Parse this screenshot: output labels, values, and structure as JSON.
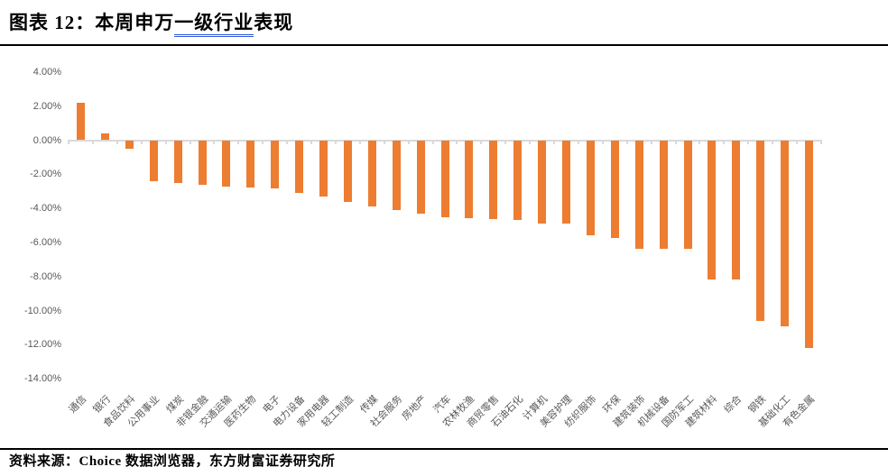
{
  "header": {
    "label_bold": "图表 12：",
    "title_part1": "本周申万",
    "title_underlined": "一级行业",
    "title_part2": "表现"
  },
  "footer": {
    "source": "资料来源：Choice 数据浏览器，东方财富证券研究所"
  },
  "colors": {
    "bar": "#ED7D31",
    "axis_line": "#D9D9D9",
    "axis_text": "#595959",
    "title_underline": "#2E5BDB",
    "rule": "#000000"
  },
  "chart_data": {
    "type": "bar",
    "title": "本周申万一级行业表现",
    "xlabel": "",
    "ylabel": "",
    "unit": "%",
    "grid": false,
    "legend": "none",
    "bar_color": "#ED7D31",
    "ylim": [
      -14,
      4
    ],
    "yticks": [
      4,
      2,
      0,
      -2,
      -4,
      -6,
      -8,
      -10,
      -12,
      -14
    ],
    "ytick_labels": [
      "4.00%",
      "2.00%",
      "0.00%",
      "-2.00%",
      "-4.00%",
      "-6.00%",
      "-8.00%",
      "-10.00%",
      "-12.00%",
      "-14.00%"
    ],
    "categories": [
      "通信",
      "银行",
      "食品饮料",
      "公用事业",
      "煤炭",
      "非银金融",
      "交通运输",
      "医药生物",
      "电子",
      "电力设备",
      "家用电器",
      "轻工制造",
      "传媒",
      "社会服务",
      "房地产",
      "汽车",
      "农林牧渔",
      "商贸零售",
      "石油石化",
      "计算机",
      "美容护理",
      "纺织服饰",
      "环保",
      "建筑装饰",
      "机械设备",
      "国防军工",
      "建筑材料",
      "综合",
      "钢铁",
      "基础化工",
      "有色金属"
    ],
    "values": [
      2.2,
      0.4,
      -0.5,
      -2.4,
      -2.5,
      -2.6,
      -2.7,
      -2.8,
      -2.85,
      -3.1,
      -3.3,
      -3.6,
      -3.9,
      -4.1,
      -4.3,
      -4.5,
      -4.6,
      -4.65,
      -4.7,
      -4.9,
      -4.9,
      -5.6,
      -5.75,
      -6.4,
      -6.4,
      -6.4,
      -8.15,
      -8.2,
      -10.6,
      -10.9,
      -12.2
    ]
  }
}
